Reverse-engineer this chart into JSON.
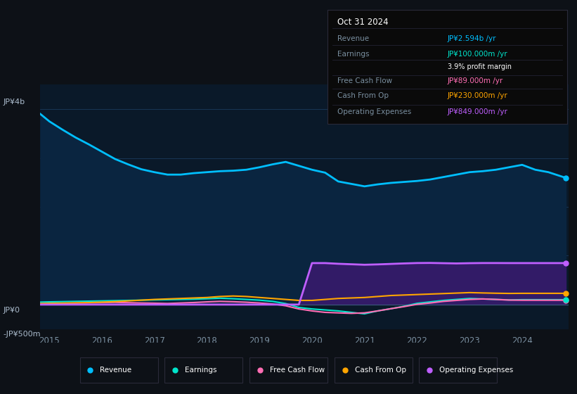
{
  "background_color": "#0d1117",
  "plot_bg_color": "#0a1929",
  "title": "Oct 31 2024",
  "ylabel_top": "JP¥4b",
  "ylabel_bottom": "-JP¥500m",
  "ylabel_zero": "JP¥0",
  "x_years": [
    2014.83,
    2015.0,
    2015.25,
    2015.5,
    2015.75,
    2016.0,
    2016.25,
    2016.5,
    2016.75,
    2017.0,
    2017.25,
    2017.5,
    2017.75,
    2018.0,
    2018.25,
    2018.5,
    2018.75,
    2019.0,
    2019.25,
    2019.5,
    2019.75,
    2020.0,
    2020.25,
    2020.5,
    2020.75,
    2021.0,
    2021.25,
    2021.5,
    2021.75,
    2022.0,
    2022.25,
    2022.5,
    2022.75,
    2023.0,
    2023.25,
    2023.5,
    2023.75,
    2024.0,
    2024.25,
    2024.5,
    2024.83
  ],
  "revenue": [
    3900,
    3750,
    3580,
    3420,
    3280,
    3130,
    2980,
    2870,
    2770,
    2710,
    2660,
    2660,
    2690,
    2710,
    2730,
    2740,
    2760,
    2810,
    2870,
    2920,
    2840,
    2760,
    2700,
    2520,
    2470,
    2420,
    2460,
    2490,
    2510,
    2530,
    2560,
    2610,
    2660,
    2710,
    2730,
    2760,
    2810,
    2860,
    2760,
    2710,
    2594
  ],
  "earnings": [
    50,
    55,
    60,
    65,
    70,
    75,
    80,
    85,
    90,
    95,
    100,
    105,
    110,
    120,
    130,
    120,
    105,
    90,
    65,
    20,
    -60,
    -90,
    -110,
    -130,
    -160,
    -190,
    -130,
    -85,
    -35,
    25,
    55,
    85,
    105,
    125,
    115,
    105,
    95,
    100,
    100,
    100,
    100
  ],
  "free_cash_flow": [
    15,
    20,
    25,
    30,
    35,
    40,
    45,
    38,
    32,
    28,
    22,
    32,
    42,
    55,
    65,
    58,
    48,
    32,
    12,
    -25,
    -90,
    -130,
    -160,
    -170,
    -180,
    -170,
    -130,
    -85,
    -42,
    5,
    32,
    65,
    85,
    105,
    115,
    105,
    92,
    89,
    89,
    89,
    89
  ],
  "cash_from_op": [
    20,
    25,
    30,
    35,
    40,
    50,
    60,
    75,
    90,
    105,
    115,
    125,
    135,
    145,
    165,
    175,
    165,
    145,
    125,
    105,
    85,
    85,
    105,
    125,
    135,
    145,
    165,
    185,
    195,
    205,
    215,
    225,
    235,
    245,
    238,
    232,
    228,
    230,
    230,
    230,
    230
  ],
  "op_expenses": [
    0,
    0,
    0,
    0,
    0,
    0,
    0,
    0,
    0,
    0,
    0,
    0,
    0,
    0,
    0,
    0,
    0,
    0,
    0,
    0,
    0,
    849,
    849,
    835,
    825,
    815,
    822,
    832,
    842,
    850,
    852,
    847,
    842,
    847,
    850,
    850,
    849,
    849,
    849,
    849,
    849
  ],
  "colors": {
    "revenue": "#00bfff",
    "earnings": "#00e5cc",
    "free_cash_flow": "#ff6eb4",
    "cash_from_op": "#ffa500",
    "op_expenses": "#bf5fff",
    "revenue_fill": "#0a2540",
    "op_expenses_fill": "#3a1a6e"
  },
  "grid_color": "#1a3a5c",
  "axis_label_color": "#7a8fa0",
  "ylim": [
    -500,
    4500
  ],
  "yticks_grid": [
    1000,
    2000,
    3000,
    4000
  ],
  "x_ticks": [
    2015,
    2016,
    2017,
    2018,
    2019,
    2020,
    2021,
    2022,
    2023,
    2024
  ],
  "legend_items": [
    {
      "label": "Revenue",
      "color": "#00bfff"
    },
    {
      "label": "Earnings",
      "color": "#00e5cc"
    },
    {
      "label": "Free Cash Flow",
      "color": "#ff6eb4"
    },
    {
      "label": "Cash From Op",
      "color": "#ffa500"
    },
    {
      "label": "Operating Expenses",
      "color": "#bf5fff"
    }
  ],
  "info_box": {
    "date": "Oct 31 2024",
    "revenue_label": "Revenue",
    "revenue_value": "JP¥2.594b",
    "revenue_color": "#00bfff",
    "earnings_label": "Earnings",
    "earnings_value": "JP¥100.000m",
    "earnings_color": "#00e5cc",
    "margin_text": "3.9% profit margin",
    "fcf_label": "Free Cash Flow",
    "fcf_value": "JP¥89.000m",
    "fcf_color": "#ff6eb4",
    "cashop_label": "Cash From Op",
    "cashop_value": "JP¥230.000m",
    "cashop_color": "#ffa500",
    "opex_label": "Operating Expenses",
    "opex_value": "JP¥849.000m",
    "opex_color": "#bf5fff"
  }
}
